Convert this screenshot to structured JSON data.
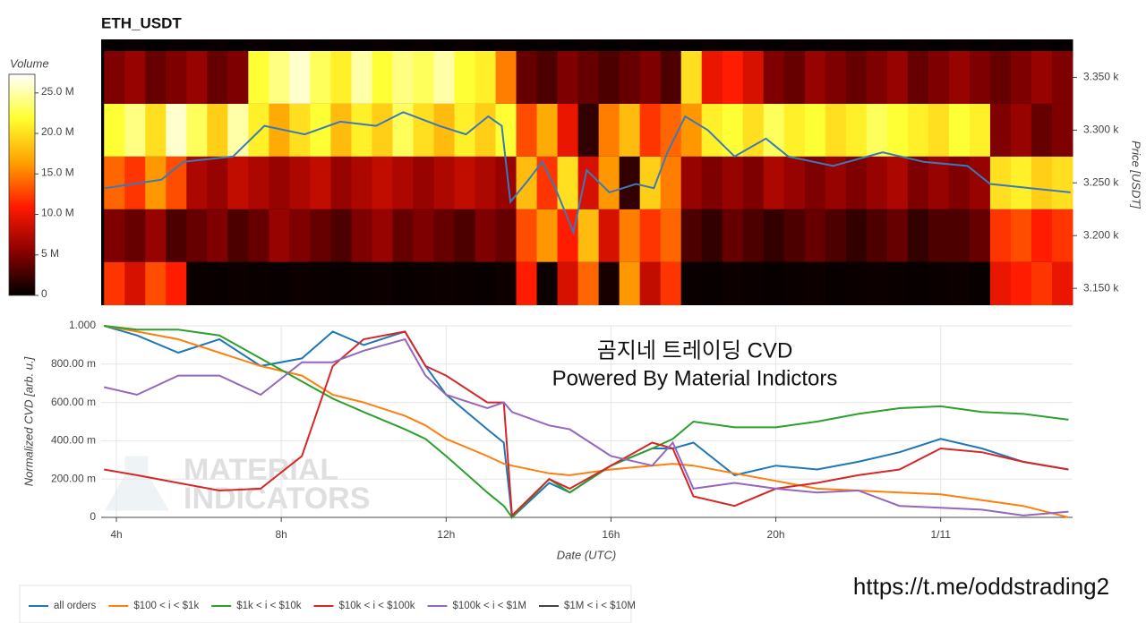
{
  "chart_data": [
    {
      "type": "heatmap",
      "title": "ETH_USDT",
      "x_bins": [
        3.7,
        4.2,
        4.7,
        5.2,
        5.7,
        6.2,
        6.7,
        7.2,
        7.7,
        8.2,
        8.7,
        9.2,
        9.7,
        10.2,
        10.7,
        11.2,
        11.7,
        12.2,
        12.7,
        13.2,
        13.7,
        14.2,
        14.7,
        15.2,
        15.7,
        16.2,
        16.7,
        17.2,
        17.7,
        18.2,
        18.7,
        19.2,
        19.7,
        20.2,
        20.7,
        21.2,
        21.7,
        22.2,
        22.7,
        23.2,
        23.7,
        24.2,
        24.7,
        25.2,
        25.7,
        26.2,
        26.7,
        27.2
      ],
      "y_bins": [
        3134,
        3175,
        3225,
        3275,
        3325,
        3375,
        3386
      ],
      "z": [
        [
          12,
          9,
          13,
          11,
          0.4,
          0.3,
          0.5,
          0.4,
          0.3,
          0.5,
          0.4,
          0.3,
          0.4,
          0.5,
          0.3,
          0.4,
          0.5,
          0.4,
          0.3,
          0.6,
          11,
          0.5,
          9,
          14,
          1,
          16,
          8,
          12,
          0.4,
          0.3,
          0.5,
          0.4,
          0.3,
          0.4,
          0.5,
          0.3,
          0.4,
          0.5,
          0.4,
          0.3,
          0.4,
          0.5,
          0.3,
          10,
          11,
          12,
          10
        ],
        [
          5,
          4,
          6,
          3,
          4,
          5,
          3,
          4,
          6,
          5,
          4,
          3,
          5,
          6,
          4,
          5,
          4,
          3,
          5,
          4,
          13,
          16,
          11,
          18,
          9,
          15,
          12,
          14,
          3,
          2,
          4,
          3,
          2,
          3,
          4,
          3,
          2,
          3,
          4,
          2,
          3,
          3,
          4,
          12,
          13,
          11,
          12
        ],
        [
          14,
          12,
          16,
          13,
          7,
          6,
          8,
          7,
          6,
          7,
          8,
          6,
          7,
          8,
          7,
          6,
          7,
          8,
          7,
          6,
          18,
          12,
          20,
          9,
          16,
          2,
          19,
          15,
          6,
          5,
          6,
          5,
          7,
          6,
          5,
          6,
          5,
          6,
          7,
          5,
          6,
          5,
          6,
          20,
          21,
          19,
          20
        ],
        [
          22,
          24,
          20,
          26,
          23,
          19,
          25,
          21,
          17,
          20,
          22,
          18,
          21,
          19,
          23,
          20,
          18,
          21,
          19,
          22,
          13,
          17,
          10,
          2,
          15,
          18,
          12,
          14,
          16,
          21,
          22,
          20,
          23,
          21,
          22,
          20,
          21,
          23,
          22,
          21,
          20,
          22,
          21,
          5,
          6,
          4,
          5
        ],
        [
          5,
          6,
          4,
          5,
          6,
          4,
          5,
          22,
          24,
          26,
          23,
          21,
          25,
          22,
          24,
          23,
          25,
          22,
          21,
          15,
          4,
          3,
          5,
          4,
          3,
          4,
          5,
          3,
          20,
          10,
          11,
          9,
          5,
          4,
          6,
          5,
          4,
          5,
          6,
          4,
          5,
          6,
          5,
          4,
          5,
          6,
          5
        ],
        [
          0.2,
          0.3,
          0.2,
          0.3,
          0.2,
          0.3,
          0.2,
          0.3,
          0.2,
          0.3,
          0.2,
          0.3,
          0.2,
          0.3,
          0.2,
          0.3,
          0.2,
          0.3,
          0.2,
          0.3,
          0.2,
          0.3,
          0.2,
          0.3,
          0.2,
          0.3,
          0.2,
          0.3,
          0.2,
          0.3,
          0.2,
          0.3,
          0.2,
          0.3,
          0.2,
          0.3,
          0.2,
          0.3,
          0.2,
          0.3,
          0.2,
          0.3,
          0.2,
          0.3,
          0.2,
          0.3,
          0.2
        ]
      ],
      "zlim": [
        0,
        27.3
      ],
      "colorscale": [
        "#000000",
        "#8b0000",
        "#ff1a00",
        "#ffa000",
        "#ffff30",
        "#ffffff"
      ],
      "colorbar_title": "Volume",
      "colorbar_ticks": [
        0,
        {
          "value": 5,
          "label": "5 M"
        },
        {
          "value": 10,
          "label": "10.0 M"
        },
        {
          "value": 15,
          "label": "15.0 M"
        },
        {
          "value": 20,
          "label": "20.0 M"
        },
        {
          "value": 25,
          "label": "25.0 M"
        }
      ],
      "xlim": [
        3.63,
        27.2
      ],
      "ylim": [
        3134,
        3386
      ],
      "yticks": [
        {
          "value": 3150,
          "label": "3.150 k"
        },
        {
          "value": 3200,
          "label": "3.200 k"
        },
        {
          "value": 3250,
          "label": "3.250 k"
        },
        {
          "value": 3300,
          "label": "3.300 k"
        },
        {
          "value": 3350,
          "label": "3.350 k"
        }
      ],
      "y_label": "Price [USDT]",
      "line": {
        "color": "#3a7ab8",
        "x": [
          3.72,
          5.09,
          5.63,
          6.83,
          7.59,
          8.57,
          9.43,
          10.3,
          10.96,
          11.83,
          12.48,
          13.02,
          13.35,
          13.56,
          14.0,
          14.33,
          14.65,
          15.09,
          15.41,
          15.96,
          16.61,
          17.04,
          17.37,
          17.8,
          18.35,
          19.0,
          19.76,
          20.3,
          21.39,
          22.59,
          23.58,
          24.65,
          25.2,
          26.17,
          27.15
        ],
        "values": [
          3245,
          3253,
          3270,
          3275,
          3304,
          3296,
          3308,
          3304,
          3317,
          3304,
          3296,
          3313,
          3304,
          3232,
          3253,
          3270,
          3245,
          3203,
          3262,
          3241,
          3249,
          3245,
          3279,
          3313,
          3300,
          3275,
          3292,
          3275,
          3266,
          3279,
          3270,
          3266,
          3249,
          3245,
          3241
        ]
      }
    },
    {
      "type": "line",
      "annotations": [
        "곰지네 트레이딩 CVD",
        "Powered By Material Indictors"
      ],
      "watermark": [
        "MATERIAL",
        "INDICATORS"
      ],
      "x": [
        3.7,
        4.5,
        5.5,
        6.5,
        7.5,
        8.5,
        9.25,
        10,
        11,
        11.5,
        12,
        13,
        13.4,
        13.6,
        14.5,
        15,
        16,
        17,
        17.5,
        18,
        19,
        20,
        21,
        22,
        23,
        24,
        25,
        26,
        27.1
      ],
      "series": [
        {
          "name": "all orders",
          "color": "#1f77b4",
          "values": [
            1.0,
            0.95,
            0.86,
            0.93,
            0.79,
            0.83,
            0.97,
            0.9,
            0.97,
            0.79,
            0.64,
            0.46,
            0.39,
            0.0,
            0.18,
            0.13,
            0.27,
            0.36,
            0.36,
            0.39,
            0.22,
            0.27,
            0.25,
            0.29,
            0.34,
            0.41,
            0.36,
            0.29,
            0.25
          ]
        },
        {
          "name": "$100 < i < $1k",
          "color": "#ff7f0e",
          "values": [
            1.0,
            0.97,
            0.93,
            0.86,
            0.79,
            0.74,
            0.64,
            0.6,
            0.53,
            0.48,
            0.41,
            0.32,
            0.28,
            0.27,
            0.23,
            0.22,
            0.25,
            0.27,
            0.28,
            0.27,
            0.23,
            0.19,
            0.15,
            0.14,
            0.13,
            0.12,
            0.09,
            0.06,
            0.0
          ]
        },
        {
          "name": "$1k < i < $10k",
          "color": "#2ca02c",
          "values": [
            1.0,
            0.98,
            0.98,
            0.95,
            0.83,
            0.71,
            0.62,
            0.55,
            0.46,
            0.41,
            0.32,
            0.13,
            0.06,
            0.0,
            0.2,
            0.13,
            0.27,
            0.36,
            0.41,
            0.5,
            0.47,
            0.47,
            0.5,
            0.54,
            0.57,
            0.58,
            0.55,
            0.54,
            0.51
          ]
        },
        {
          "name": "$10k < i < $100k",
          "color": "#d62728",
          "values": [
            0.25,
            0.22,
            0.18,
            0.14,
            0.15,
            0.32,
            0.79,
            0.93,
            0.97,
            0.79,
            0.74,
            0.6,
            0.6,
            0.01,
            0.2,
            0.15,
            0.27,
            0.39,
            0.36,
            0.11,
            0.06,
            0.15,
            0.18,
            0.22,
            0.25,
            0.36,
            0.34,
            0.29,
            0.25
          ]
        },
        {
          "name": "$100k < i < $1M",
          "color": "#9467bd",
          "values": [
            0.68,
            0.64,
            0.74,
            0.74,
            0.64,
            0.81,
            0.81,
            0.87,
            0.93,
            0.74,
            0.64,
            0.57,
            0.6,
            0.55,
            0.48,
            0.46,
            0.32,
            0.27,
            0.39,
            0.15,
            0.18,
            0.15,
            0.13,
            0.14,
            0.06,
            0.05,
            0.04,
            0.01,
            0.03
          ]
        },
        {
          "name": "$1M < i < $10M",
          "color": "#444444",
          "values": [
            null,
            null,
            null,
            null,
            null,
            null,
            null,
            null,
            null,
            null,
            null,
            null,
            null,
            null,
            null,
            null,
            null,
            null,
            null,
            null,
            null,
            null,
            null,
            null,
            null,
            null,
            null,
            null,
            null
          ]
        }
      ],
      "xlim": [
        3.63,
        27.2
      ],
      "ylim": [
        0,
        1
      ],
      "xticks": [
        {
          "value": 4,
          "label": "4h"
        },
        {
          "value": 8,
          "label": "8h"
        },
        {
          "value": 12,
          "label": "12h"
        },
        {
          "value": 16,
          "label": "16h"
        },
        {
          "value": 20,
          "label": "20h"
        },
        {
          "value": 24,
          "label": "1/11"
        }
      ],
      "yticks": [
        0,
        {
          "value": 0.2,
          "label": "200.00 m"
        },
        {
          "value": 0.4,
          "label": "400.00 m"
        },
        {
          "value": 0.6,
          "label": "600.00 m"
        },
        {
          "value": 0.8,
          "label": "800.00 m"
        },
        {
          "value": 1,
          "label": "1.000"
        }
      ],
      "x_label": "Date (UTC)",
      "y_label": "Normalized CVD [arb. u.]",
      "grid": true,
      "legend": "bottom-left"
    }
  ],
  "link": "https://t.me/oddstrading2"
}
